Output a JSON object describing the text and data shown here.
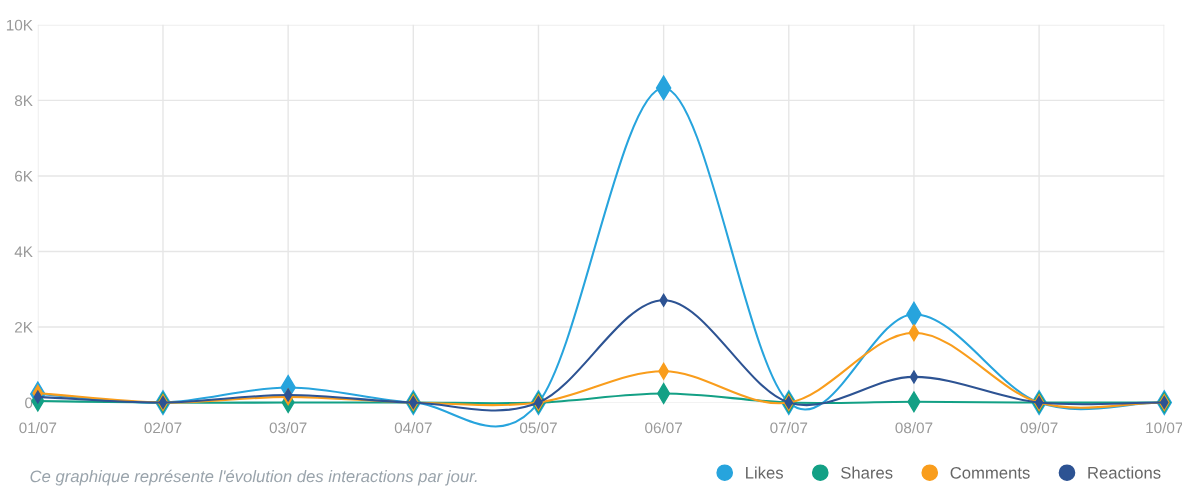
{
  "chart_data": {
    "type": "line",
    "categories": [
      "01/07",
      "02/07",
      "03/07",
      "04/07",
      "05/07",
      "06/07",
      "07/07",
      "08/07",
      "09/07",
      "10/07"
    ],
    "series": [
      {
        "name": "Likes",
        "color": "#27a4dd",
        "values": [
          230,
          0,
          400,
          0,
          0,
          8330,
          0,
          2340,
          0,
          0
        ]
      },
      {
        "name": "Shares",
        "color": "#13a085",
        "values": [
          40,
          0,
          0,
          0,
          0,
          240,
          0,
          20,
          0,
          0
        ]
      },
      {
        "name": "Comments",
        "color": "#f99d1c",
        "values": [
          250,
          0,
          150,
          0,
          0,
          830,
          0,
          1850,
          0,
          0
        ]
      },
      {
        "name": "Reactions",
        "color": "#2d5393",
        "values": [
          150,
          0,
          200,
          0,
          0,
          2710,
          0,
          680,
          0,
          0
        ]
      }
    ],
    "ylim": [
      0,
      10000
    ],
    "yticks": [
      0,
      {
        "value": 2000,
        "label": "2K"
      },
      {
        "value": 4000,
        "label": "4K"
      },
      {
        "value": 6000,
        "label": "6K"
      },
      {
        "value": 8000,
        "label": "8K"
      },
      {
        "value": 10000,
        "label": "10K"
      }
    ],
    "grid": true,
    "legend": "bottom right",
    "marker": "diamond",
    "line_style": "solid",
    "annotations": [
      "Ce graphique représente l'évolution des interactions par jour."
    ]
  }
}
